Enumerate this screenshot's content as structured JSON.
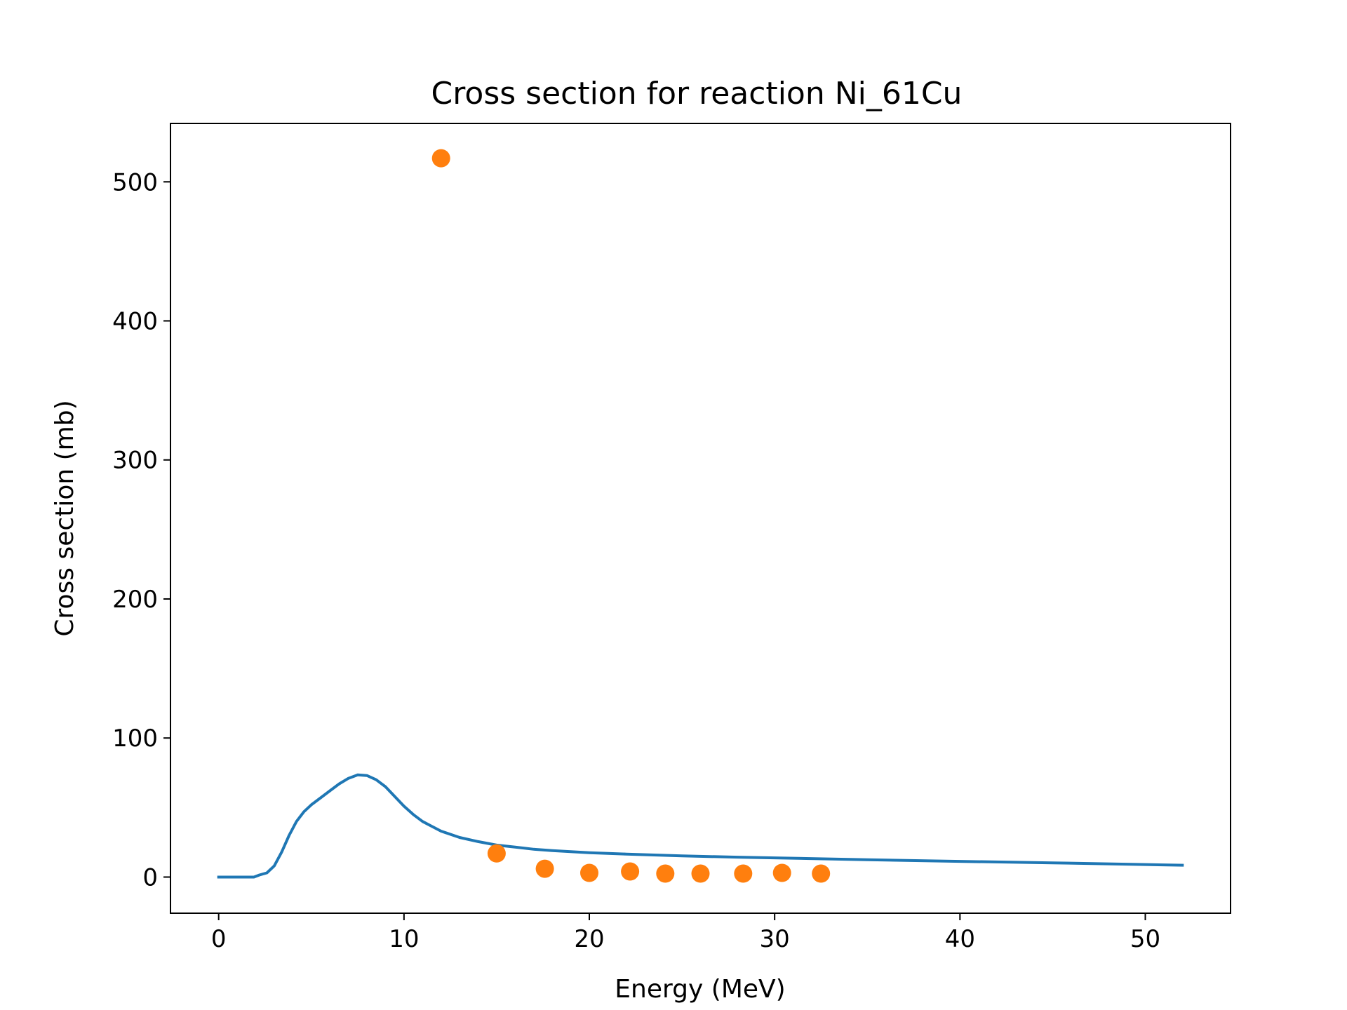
{
  "chart_data": {
    "type": "line",
    "title": "Cross section for reaction Ni_61Cu",
    "xlabel": "Energy (MeV)",
    "ylabel": "Cross section (mb)",
    "xlim": [
      -2.6,
      54.6
    ],
    "ylim": [
      -26,
      542
    ],
    "xticks": [
      0,
      10,
      20,
      30,
      40,
      50
    ],
    "yticks": [
      0,
      100,
      200,
      300,
      400,
      500
    ],
    "grid": false,
    "legend": "none",
    "series": [
      {
        "kind": "line",
        "color": "#1f77b4",
        "x": [
          0,
          1,
          1.9,
          2.2,
          2.6,
          3.0,
          3.4,
          3.8,
          4.2,
          4.6,
          5.0,
          5.5,
          6.0,
          6.5,
          7.0,
          7.5,
          8.0,
          8.5,
          9.0,
          9.5,
          10.0,
          10.5,
          11.0,
          11.5,
          12.0,
          13.0,
          14.0,
          15.0,
          16.0,
          17.0,
          18.0,
          20.0,
          22.0,
          25.0,
          28.0,
          30.0,
          35.0,
          40.0,
          45.0,
          50.0,
          52.0
        ],
        "y": [
          0,
          0,
          0,
          1.5,
          3,
          8,
          18,
          30,
          40,
          47,
          52,
          57,
          62,
          67,
          71,
          73.5,
          73,
          70,
          65,
          58,
          51,
          45,
          40,
          36.5,
          33,
          28.5,
          25.5,
          23,
          21.5,
          20,
          19,
          17.5,
          16.5,
          15.2,
          14.3,
          13.8,
          12.5,
          11.3,
          10.2,
          9,
          8.5
        ]
      },
      {
        "kind": "scatter",
        "color": "#ff7f0e",
        "x": [
          12.0,
          15.0,
          17.6,
          20.0,
          22.2,
          24.1,
          26.0,
          28.3,
          30.4,
          32.5
        ],
        "y": [
          517,
          17,
          6,
          3,
          4,
          2.5,
          2.5,
          2.5,
          3,
          2.5
        ]
      }
    ]
  }
}
